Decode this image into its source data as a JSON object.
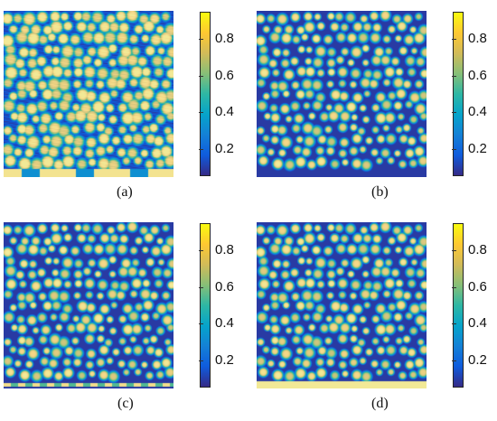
{
  "colormap": [
    "#352a87",
    "#0f5cdd",
    "#1481d6",
    "#06a4ca",
    "#2eb7a4",
    "#87bf77",
    "#d1bb59",
    "#fec832",
    "#f9fb0e"
  ],
  "chart_data": [
    {
      "type": "heatmap",
      "label": "(a)",
      "colorbar": {
        "range": [
          0.05,
          0.95
        ],
        "ticks": [
          0.2,
          0.4,
          0.6,
          0.8
        ],
        "tick_labels": [
          "0.2",
          "0.4",
          "0.6",
          "0.8"
        ]
      },
      "pattern": "many dense bright droplets with light interconnections over the field; bright yellow droplets merging along the bottom edge",
      "bottom_band": "partial"
    },
    {
      "type": "heatmap",
      "label": "(b)",
      "colorbar": {
        "range": [
          0.05,
          0.95
        ],
        "ticks": [
          0.2,
          0.4,
          0.6,
          0.8
        ],
        "tick_labels": [
          "0.2",
          "0.4",
          "0.6",
          "0.8"
        ]
      },
      "pattern": "separated round droplets on a dark background",
      "bottom_band": "none"
    },
    {
      "type": "heatmap",
      "label": "(c)",
      "colorbar": {
        "range": [
          0.05,
          0.95
        ],
        "ticks": [
          0.2,
          0.4,
          0.6,
          0.8
        ],
        "tick_labels": [
          "0.2",
          "0.4",
          "0.6",
          "0.8"
        ]
      },
      "pattern": "separated round droplets on a dark background",
      "bottom_band": "dashed"
    },
    {
      "type": "heatmap",
      "label": "(d)",
      "colorbar": {
        "range": [
          0.05,
          0.95
        ],
        "ticks": [
          0.2,
          0.4,
          0.6,
          0.8
        ],
        "tick_labels": [
          "0.2",
          "0.4",
          "0.6",
          "0.8"
        ]
      },
      "pattern": "separated round droplets on a dark background",
      "bottom_band": "solid"
    }
  ]
}
